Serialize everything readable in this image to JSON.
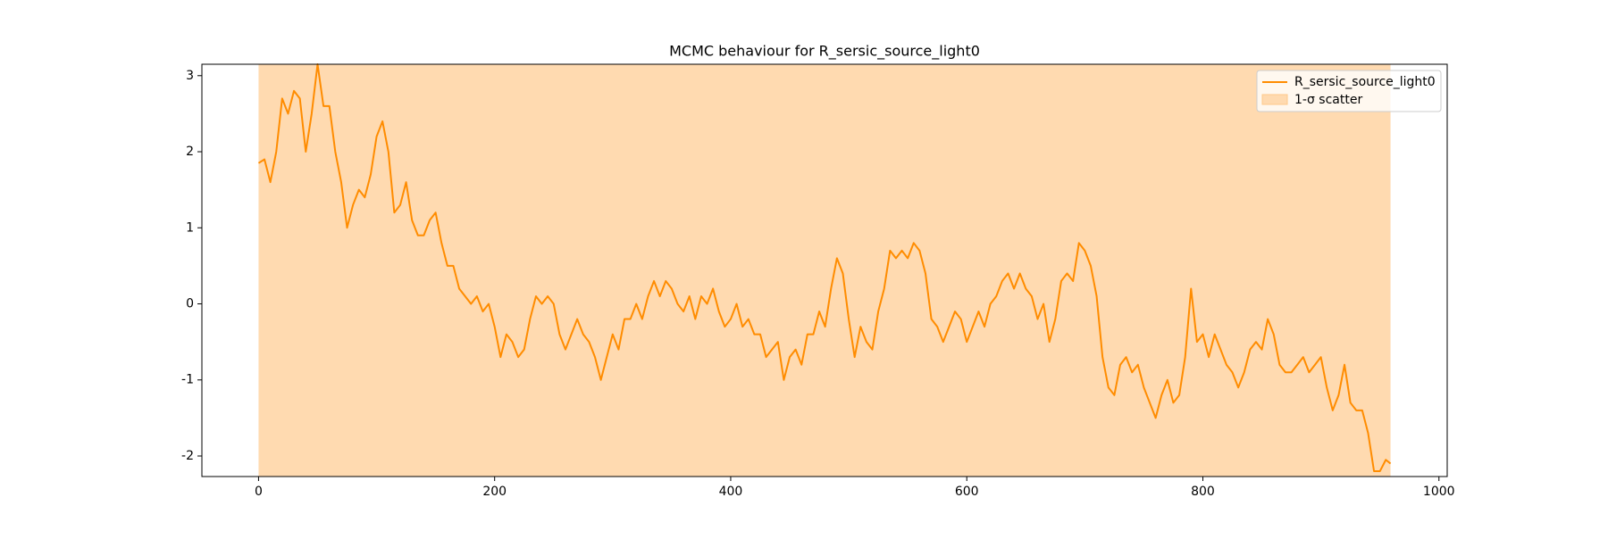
{
  "chart_data": {
    "type": "line",
    "title": "MCMC behaviour for R_sersic_source_light0",
    "series": [
      {
        "name": "R_sersic_source_light0",
        "color": "#ff8c00",
        "x": [
          0,
          5,
          10,
          15,
          20,
          25,
          30,
          35,
          40,
          45,
          50,
          55,
          60,
          65,
          70,
          75,
          80,
          85,
          90,
          95,
          100,
          105,
          110,
          115,
          120,
          125,
          130,
          135,
          140,
          145,
          150,
          155,
          160,
          165,
          170,
          175,
          180,
          185,
          190,
          195,
          200,
          205,
          210,
          215,
          220,
          225,
          230,
          235,
          240,
          245,
          250,
          255,
          260,
          265,
          270,
          275,
          280,
          285,
          290,
          295,
          300,
          305,
          310,
          315,
          320,
          325,
          330,
          335,
          340,
          345,
          350,
          355,
          360,
          365,
          370,
          375,
          380,
          385,
          390,
          395,
          400,
          405,
          410,
          415,
          420,
          425,
          430,
          435,
          440,
          445,
          450,
          455,
          460,
          465,
          470,
          475,
          480,
          485,
          490,
          495,
          500,
          505,
          510,
          515,
          520,
          525,
          530,
          535,
          540,
          545,
          550,
          555,
          560,
          565,
          570,
          575,
          580,
          585,
          590,
          595,
          600,
          605,
          610,
          615,
          620,
          625,
          630,
          635,
          640,
          645,
          650,
          655,
          660,
          665,
          670,
          675,
          680,
          685,
          690,
          695,
          700,
          705,
          710,
          715,
          720,
          725,
          730,
          735,
          740,
          745,
          750,
          755,
          760,
          765,
          770,
          775,
          780,
          785,
          790,
          795,
          800,
          805,
          810,
          815,
          820,
          825,
          830,
          835,
          840,
          845,
          850,
          855,
          860,
          865,
          870,
          875,
          880,
          885,
          890,
          895,
          900,
          905,
          910,
          915,
          920,
          925,
          930,
          935,
          940,
          945,
          950,
          955,
          959
        ],
        "values": [
          1.85,
          1.9,
          1.6,
          2.0,
          2.7,
          2.5,
          2.8,
          2.7,
          2.0,
          2.5,
          3.15,
          2.6,
          2.6,
          2.0,
          1.6,
          1.0,
          1.3,
          1.5,
          1.4,
          1.7,
          2.2,
          2.4,
          2.0,
          1.2,
          1.3,
          1.6,
          1.1,
          0.9,
          0.9,
          1.1,
          1.2,
          0.8,
          0.5,
          0.5,
          0.2,
          0.1,
          0.0,
          0.1,
          -0.1,
          0.0,
          -0.3,
          -0.7,
          -0.4,
          -0.5,
          -0.7,
          -0.6,
          -0.2,
          0.1,
          0.0,
          0.1,
          0.0,
          -0.4,
          -0.6,
          -0.4,
          -0.2,
          -0.4,
          -0.5,
          -0.7,
          -1.0,
          -0.7,
          -0.4,
          -0.6,
          -0.2,
          -0.2,
          0.0,
          -0.2,
          0.1,
          0.3,
          0.1,
          0.3,
          0.2,
          0.0,
          -0.1,
          0.1,
          -0.2,
          0.1,
          0.0,
          0.2,
          -0.1,
          -0.3,
          -0.2,
          0.0,
          -0.3,
          -0.2,
          -0.4,
          -0.4,
          -0.7,
          -0.6,
          -0.5,
          -1.0,
          -0.7,
          -0.6,
          -0.8,
          -0.4,
          -0.4,
          -0.1,
          -0.3,
          0.2,
          0.6,
          0.4,
          -0.2,
          -0.7,
          -0.3,
          -0.5,
          -0.6,
          -0.1,
          0.2,
          0.7,
          0.6,
          0.7,
          0.6,
          0.8,
          0.7,
          0.4,
          -0.2,
          -0.3,
          -0.5,
          -0.3,
          -0.1,
          -0.2,
          -0.5,
          -0.3,
          -0.1,
          -0.3,
          0.0,
          0.1,
          0.3,
          0.4,
          0.2,
          0.4,
          0.2,
          0.1,
          -0.2,
          0.0,
          -0.5,
          -0.2,
          0.3,
          0.4,
          0.3,
          0.8,
          0.7,
          0.5,
          0.1,
          -0.7,
          -1.1,
          -1.2,
          -0.8,
          -0.7,
          -0.9,
          -0.8,
          -1.1,
          -1.3,
          -1.5,
          -1.2,
          -1.0,
          -1.3,
          -1.2,
          -0.7,
          0.2,
          -0.5,
          -0.4,
          -0.7,
          -0.4,
          -0.6,
          -0.8,
          -0.9,
          -1.1,
          -0.9,
          -0.6,
          -0.5,
          -0.6,
          -0.2,
          -0.4,
          -0.8,
          -0.9,
          -0.9,
          -0.8,
          -0.7,
          -0.9,
          -0.8,
          -0.7,
          -1.1,
          -1.4,
          -1.2,
          -0.8,
          -1.3,
          -1.4,
          -1.4,
          -1.7,
          -2.2,
          -2.2,
          -2.05,
          -2.1
        ]
      }
    ],
    "band": {
      "name": "1-σ scatter",
      "color": "#ffdab0",
      "x": [
        0,
        959
      ]
    },
    "xlim": [
      -48,
      1007
    ],
    "ylim": [
      -2.27,
      3.15
    ],
    "xticks": [
      0,
      200,
      400,
      600,
      800,
      1000
    ],
    "yticks": [
      -2,
      -1,
      0,
      1,
      2,
      3
    ],
    "legend": "upper right"
  }
}
